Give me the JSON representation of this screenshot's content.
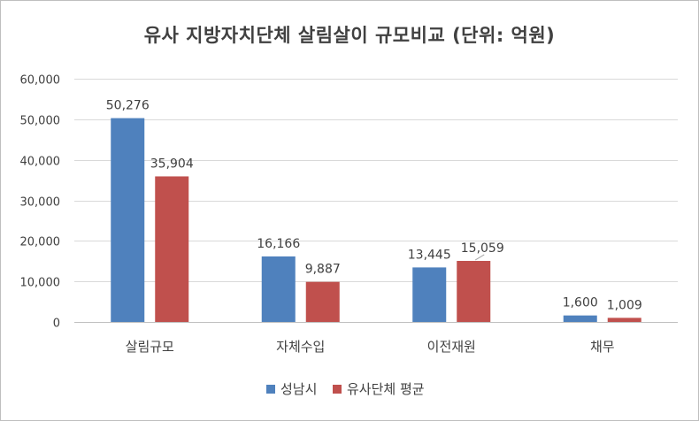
{
  "chart_data": {
    "type": "bar",
    "title": "유사 지방자치단체 살림살이 규모비교   (단위: 억원)",
    "categories": [
      "살림규모",
      "자체수입",
      "이전재원",
      "채무"
    ],
    "series": [
      {
        "name": "성남시",
        "values": [
          50276,
          16166,
          13445,
          1600
        ],
        "labels": [
          "50,276",
          "16,166",
          "13,445",
          "1,600"
        ],
        "color": "#4f81bd"
      },
      {
        "name": "유사단체 평균",
        "values": [
          35904,
          9887,
          15059,
          1009
        ],
        "labels": [
          "35,904",
          "9,887",
          "15,059",
          "1,009"
        ],
        "color": "#c0504d"
      }
    ],
    "ylim": [
      0,
      60000
    ],
    "yticks": [
      0,
      10000,
      20000,
      30000,
      40000,
      50000,
      60000
    ],
    "ytick_labels": [
      "0",
      "10,000",
      "20,000",
      "30,000",
      "40,000",
      "50,000",
      "60,000"
    ],
    "grid": true,
    "legend_position": "bottom",
    "gridline_color": "#d9d9d9"
  }
}
